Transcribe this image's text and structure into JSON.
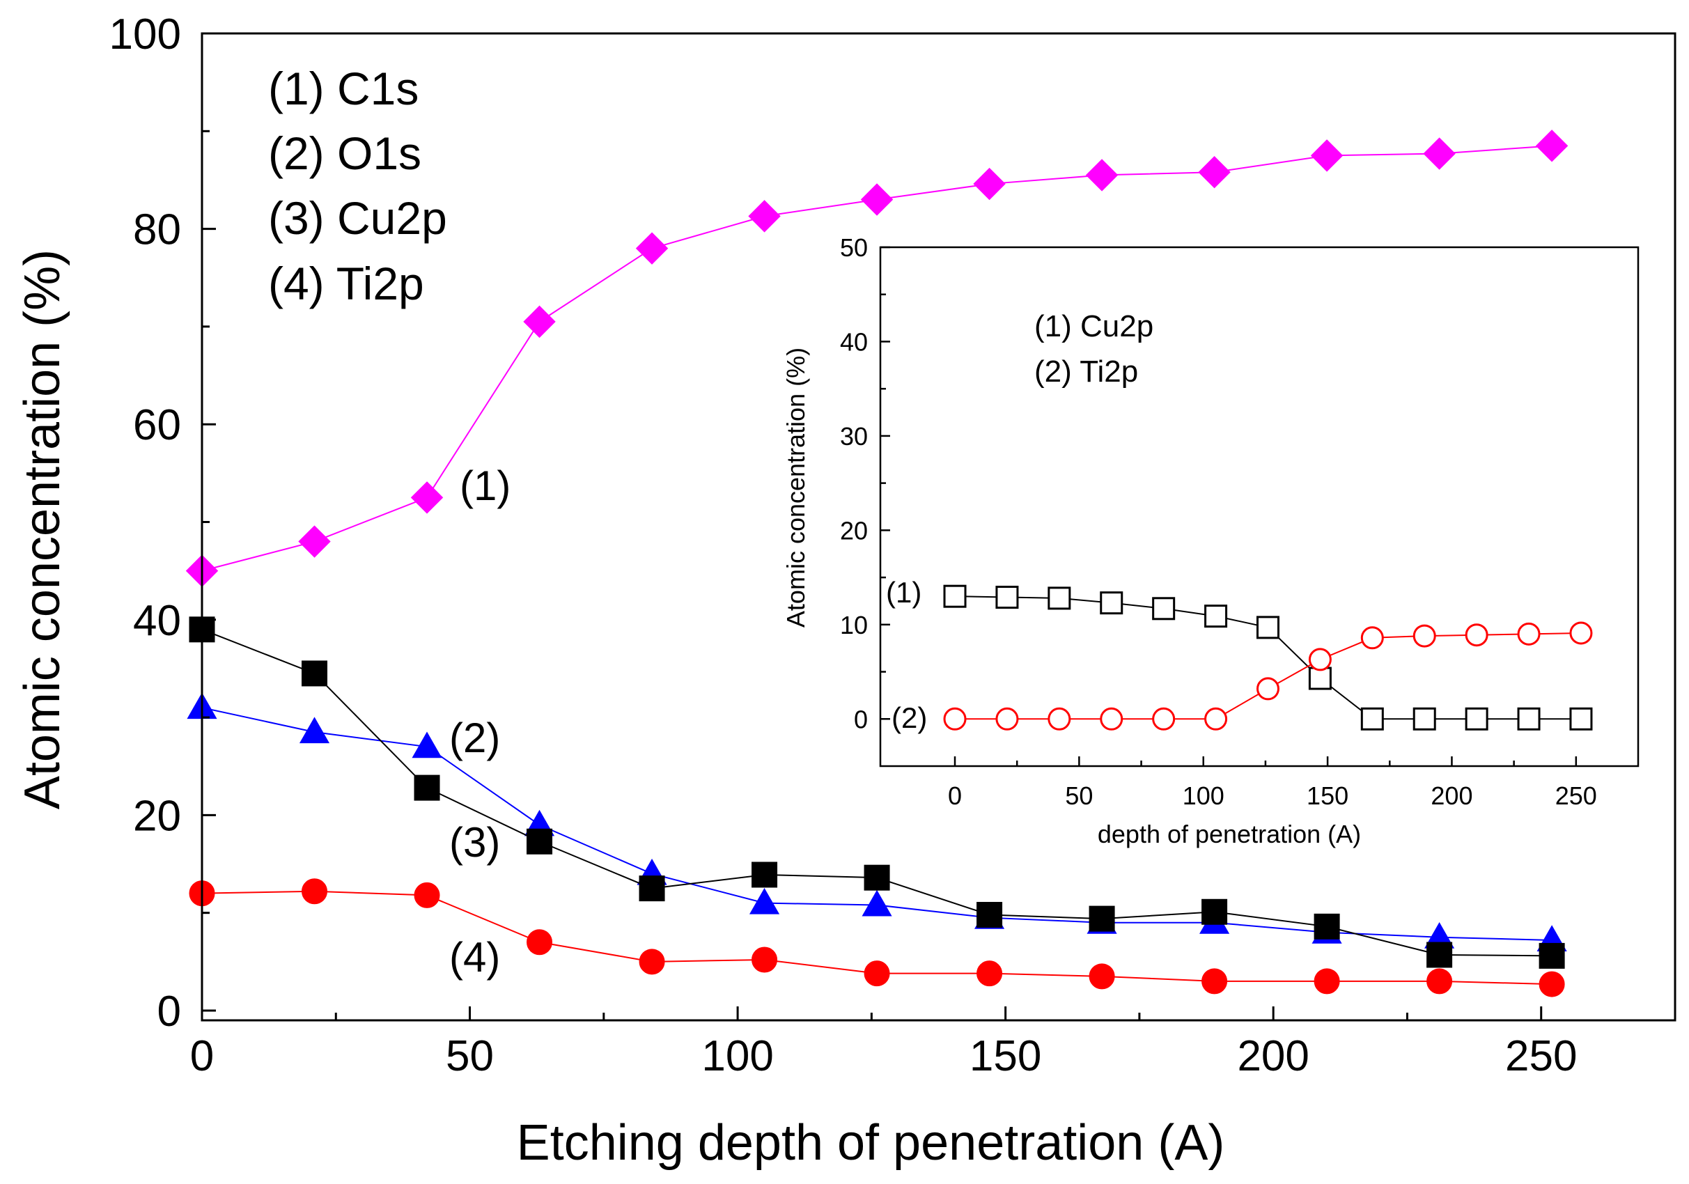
{
  "chart_data": [
    {
      "type": "line",
      "title": "",
      "xlabel": "Etching depth of penetration (A)",
      "ylabel": "Atomic concentration (%)",
      "xlim": [
        0,
        275
      ],
      "ylim": [
        -1,
        100
      ],
      "xticks": [
        0,
        50,
        100,
        150,
        200,
        250
      ],
      "yticks": [
        0,
        20,
        40,
        60,
        80,
        100
      ],
      "xtick_labels": [
        "0",
        "50",
        "100",
        "150",
        "200",
        "250"
      ],
      "ytick_labels": [
        "0",
        "20",
        "40",
        "60",
        "80",
        "100"
      ],
      "legend": [
        "(1) C1s",
        "(2) O1s",
        "(3) Cu2p",
        "(4) Ti2p"
      ],
      "legend_position": "top-left",
      "annotations": [
        "(1)",
        "(2)",
        "(3)",
        "(4)"
      ],
      "x": [
        0,
        21,
        42,
        63,
        84,
        105,
        126,
        147,
        168,
        189,
        210,
        231,
        252
      ],
      "series": [
        {
          "name": "(1) C1s",
          "color": "#ff00ff",
          "marker": "diamond",
          "filled": true,
          "values": [
            45,
            48,
            52.5,
            70.5,
            78,
            81.3,
            83,
            84.6,
            85.5,
            85.8,
            87.5,
            87.7,
            88.5
          ]
        },
        {
          "name": "(2) O1s",
          "color": "#0000ff",
          "marker": "triangle",
          "filled": true,
          "values": [
            31,
            28.5,
            27,
            19,
            14,
            11,
            10.8,
            9.5,
            9,
            9,
            8,
            7.5,
            7.2
          ]
        },
        {
          "name": "(3) Cu2p",
          "color": "#000000",
          "marker": "square",
          "filled": true,
          "values": [
            39,
            34.5,
            22.8,
            17.3,
            12.5,
            13.9,
            13.6,
            9.8,
            9.4,
            10.1,
            8.6,
            5.7,
            5.6
          ]
        },
        {
          "name": "(4) Ti2p",
          "color": "#ff0000",
          "marker": "circle",
          "filled": true,
          "values": [
            12,
            12.2,
            11.8,
            7,
            5,
            5.2,
            3.8,
            3.8,
            3.5,
            3,
            3,
            3,
            2.7
          ]
        }
      ]
    },
    {
      "type": "line",
      "title": "",
      "xlabel": "depth of penetration (A)",
      "ylabel": "Atomic concentration (%)",
      "xlim": [
        -30,
        275
      ],
      "ylim": [
        -5,
        50
      ],
      "xticks": [
        0,
        50,
        100,
        150,
        200,
        250
      ],
      "yticks": [
        0,
        10,
        20,
        30,
        40,
        50
      ],
      "xtick_labels": [
        "0",
        "50",
        "100",
        "150",
        "200",
        "250"
      ],
      "ytick_labels": [
        "0",
        "10",
        "20",
        "30",
        "40",
        "50"
      ],
      "legend": [
        "(1) Cu2p",
        "(2) Ti2p"
      ],
      "legend_position": "top-left",
      "annotations": [
        "(1)",
        "(2)"
      ],
      "x": [
        0,
        21,
        42,
        63,
        84,
        105,
        126,
        147,
        168,
        189,
        210,
        231,
        252
      ],
      "series": [
        {
          "name": "(1) Cu2p",
          "color": "#000000",
          "marker": "square",
          "filled": false,
          "values": [
            13,
            12.9,
            12.8,
            12.3,
            11.7,
            10.9,
            9.7,
            4.3,
            0,
            0,
            0,
            0,
            0
          ]
        },
        {
          "name": "(2) Ti2p",
          "color": "#ff0000",
          "marker": "circle",
          "filled": false,
          "values": [
            0,
            0,
            0,
            0,
            0,
            0,
            3.2,
            6.3,
            8.6,
            8.8,
            8.9,
            9,
            9.1
          ]
        }
      ]
    }
  ]
}
